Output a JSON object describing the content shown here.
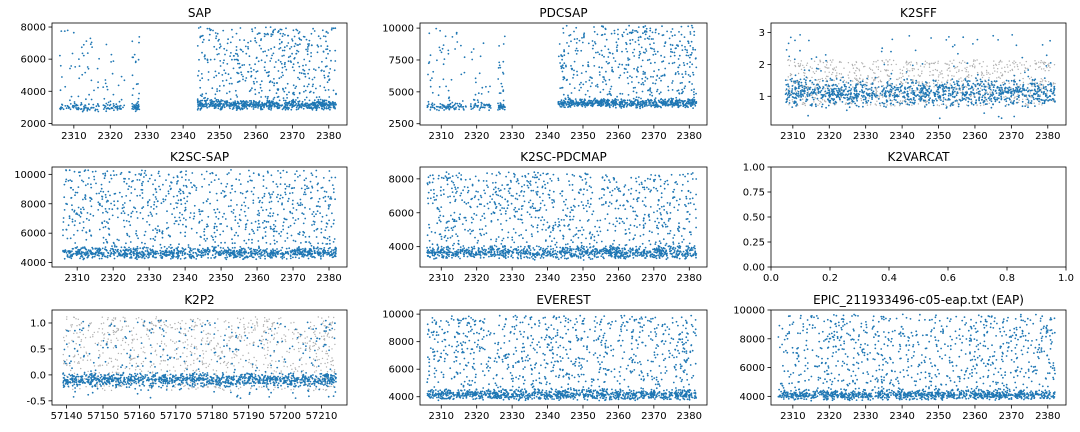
{
  "colors": {
    "points": "#1f77b4",
    "background_points": "#b0b0b0",
    "axes": "#000000"
  },
  "chart_data": [
    {
      "type": "scatter",
      "title": "SAP",
      "xlabel": "",
      "ylabel": "",
      "xlim": [
        2304,
        2385
      ],
      "ylim": [
        1900,
        8250
      ],
      "grid": false,
      "xticks": [
        "2310",
        "2320",
        "2330",
        "2340",
        "2350",
        "2360",
        "2370",
        "2380"
      ],
      "yticks": [
        "2000",
        "4000",
        "6000",
        "8000"
      ],
      "series": [
        {
          "segments": [
            {
              "x": [
                2306,
                2317
              ],
              "band": [
                2700,
                3300
              ],
              "spread": [
                2900,
                7800
              ],
              "n_band": 70,
              "n_spread": 45
            },
            {
              "x": [
                2318,
                2324
              ],
              "band": [
                2700,
                3300
              ],
              "spread": [
                2900,
                7000
              ],
              "n_band": 40,
              "n_spread": 20
            },
            {
              "x": [
                2326,
                2328
              ],
              "band": [
                2700,
                3300
              ],
              "spread": [
                2900,
                7400
              ],
              "n_band": 35,
              "n_spread": 18
            },
            {
              "x": [
                2344,
                2382
              ],
              "band": [
                2800,
                3500
              ],
              "spread": [
                3000,
                8000
              ],
              "n_band": 600,
              "n_spread": 480
            }
          ]
        }
      ]
    },
    {
      "type": "scatter",
      "title": "PDCSAP",
      "xlabel": "",
      "ylabel": "",
      "xlim": [
        2304,
        2385
      ],
      "ylim": [
        2400,
        10400
      ],
      "grid": false,
      "xticks": [
        "2310",
        "2320",
        "2330",
        "2340",
        "2350",
        "2360",
        "2370",
        "2380"
      ],
      "yticks": [
        "2500",
        "5000",
        "7500",
        "10000"
      ],
      "series": [
        {
          "segments": [
            {
              "x": [
                2306,
                2317
              ],
              "band": [
                3500,
                4200
              ],
              "spread": [
                3800,
                10000
              ],
              "n_band": 70,
              "n_spread": 45
            },
            {
              "x": [
                2318,
                2324
              ],
              "band": [
                3500,
                4200
              ],
              "spread": [
                3800,
                9000
              ],
              "n_band": 40,
              "n_spread": 20
            },
            {
              "x": [
                2326,
                2328
              ],
              "band": [
                3500,
                4200
              ],
              "spread": [
                3800,
                9500
              ],
              "n_band": 35,
              "n_spread": 18
            },
            {
              "x": [
                2343,
                2382
              ],
              "band": [
                3700,
                4500
              ],
              "spread": [
                3900,
                10200
              ],
              "n_band": 600,
              "n_spread": 480
            }
          ]
        }
      ]
    },
    {
      "type": "scatter",
      "title": "K2SFF",
      "xlabel": "",
      "ylabel": "",
      "xlim": [
        2304,
        2385
      ],
      "ylim": [
        0.1,
        3.3
      ],
      "grid": false,
      "xticks": [
        "2310",
        "2320",
        "2330",
        "2340",
        "2350",
        "2360",
        "2370",
        "2380"
      ],
      "yticks": [
        "1",
        "2",
        "3"
      ],
      "background": {
        "x": [
          2308,
          2382
        ],
        "range": [
          0.7,
          2.15
        ],
        "n": 900
      },
      "series": [
        {
          "segments": [
            {
              "x": [
                2308,
                2382
              ],
              "band": [
                0.6,
                1.6
              ],
              "spread": [
                0.3,
                3.0
              ],
              "n_band": 1100,
              "n_spread": 90
            }
          ]
        }
      ]
    },
    {
      "type": "scatter",
      "title": "K2SC-SAP",
      "xlabel": "",
      "ylabel": "",
      "xlim": [
        2303,
        2385
      ],
      "ylim": [
        3700,
        10500
      ],
      "grid": false,
      "xticks": [
        "2310",
        "2320",
        "2330",
        "2340",
        "2350",
        "2360",
        "2370",
        "2380"
      ],
      "yticks": [
        "4000",
        "6000",
        "8000",
        "10000"
      ],
      "series": [
        {
          "segments": [
            {
              "x": [
                2306,
                2382
              ],
              "band": [
                4200,
                5100
              ],
              "spread": [
                4400,
                10300
              ],
              "n_band": 900,
              "n_spread": 900
            }
          ]
        }
      ]
    },
    {
      "type": "scatter",
      "title": "K2SC-PDCMAP",
      "xlabel": "",
      "ylabel": "",
      "xlim": [
        2304,
        2385
      ],
      "ylim": [
        2800,
        8700
      ],
      "grid": false,
      "xticks": [
        "2310",
        "2320",
        "2330",
        "2340",
        "2350",
        "2360",
        "2370",
        "2380"
      ],
      "yticks": [
        "4000",
        "6000",
        "8000"
      ],
      "series": [
        {
          "segments": [
            {
              "x": [
                2306,
                2382
              ],
              "band": [
                3200,
                4100
              ],
              "spread": [
                3400,
                8400
              ],
              "n_band": 900,
              "n_spread": 900
            }
          ]
        }
      ]
    },
    {
      "type": "scatter",
      "title": "K2VARCAT",
      "xlabel": "",
      "ylabel": "",
      "xlim": [
        0,
        1
      ],
      "ylim": [
        0,
        1
      ],
      "grid": false,
      "xticks": [
        "0.0",
        "0.2",
        "0.4",
        "0.6",
        "0.8",
        "1.0"
      ],
      "yticks": [
        "0.00",
        "0.25",
        "0.50",
        "0.75",
        "1.00"
      ],
      "series": []
    },
    {
      "type": "scatter",
      "title": "K2P2",
      "xlabel": "",
      "ylabel": "",
      "xlim": [
        57136,
        57217
      ],
      "ylim": [
        -0.58,
        1.25
      ],
      "grid": false,
      "xticks": [
        "57140",
        "57150",
        "57160",
        "57170",
        "57180",
        "57190",
        "57200",
        "57210"
      ],
      "yticks": [
        "-0.5",
        "0.0",
        "0.5",
        "1.0"
      ],
      "background": {
        "x": [
          57139,
          57214
        ],
        "range": [
          -0.3,
          1.12
        ],
        "n": 900
      },
      "series": [
        {
          "segments": [
            {
              "x": [
                57139,
                57214
              ],
              "band": [
                -0.25,
                0.05
              ],
              "spread": [
                -0.45,
                1.05
              ],
              "n_band": 1000,
              "n_spread": 300
            }
          ]
        }
      ]
    },
    {
      "type": "scatter",
      "title": "EVEREST",
      "xlabel": "",
      "ylabel": "",
      "xlim": [
        2304,
        2385
      ],
      "ylim": [
        3400,
        10300
      ],
      "grid": false,
      "xticks": [
        "2310",
        "2320",
        "2330",
        "2340",
        "2350",
        "2360",
        "2370",
        "2380"
      ],
      "yticks": [
        "4000",
        "6000",
        "8000",
        "10000"
      ],
      "series": [
        {
          "segments": [
            {
              "x": [
                2306,
                2382
              ],
              "band": [
                3700,
                4600
              ],
              "spread": [
                3800,
                9900
              ],
              "n_band": 900,
              "n_spread": 900
            }
          ]
        }
      ]
    },
    {
      "type": "scatter",
      "title": "EPIC_211933496-c05-eap.txt (EAP)",
      "xlabel": "",
      "ylabel": "",
      "xlim": [
        2304,
        2385
      ],
      "ylim": [
        3400,
        10000
      ],
      "grid": false,
      "xticks": [
        "2310",
        "2320",
        "2330",
        "2340",
        "2350",
        "2360",
        "2370",
        "2380"
      ],
      "yticks": [
        "4000",
        "6000",
        "8000",
        "10000"
      ],
      "series": [
        {
          "segments": [
            {
              "x": [
                2306,
                2382
              ],
              "band": [
                3700,
                4500
              ],
              "spread": [
                3800,
                9700
              ],
              "n_band": 900,
              "n_spread": 900
            }
          ]
        }
      ]
    }
  ]
}
